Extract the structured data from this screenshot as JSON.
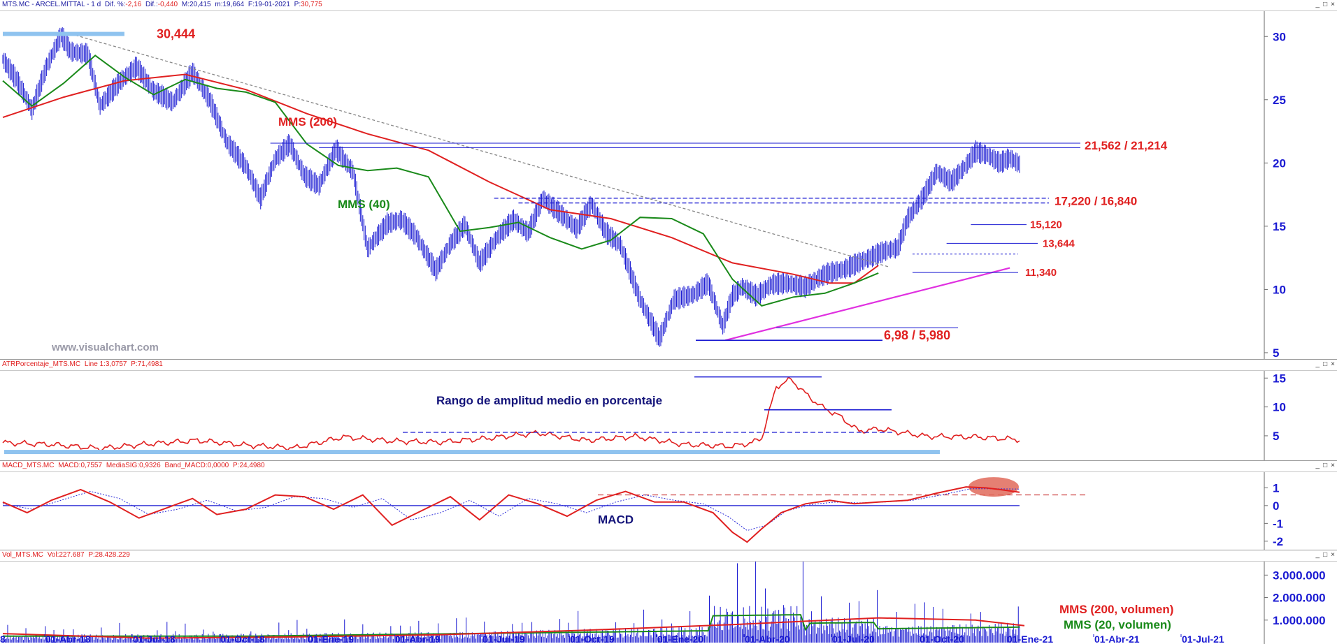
{
  "chart_data": [
    {
      "type": "line",
      "panel": "price",
      "header": {
        "symbol": "MTS.MC - ARCEL.MITTAL - 1 d",
        "change_pct_label": "Dif. %:",
        "change_pct": "-2,16",
        "change_label": "Dif.:",
        "change": "-0,440",
        "max_label": "M:",
        "max": "20,415",
        "min_label": "m:",
        "min": "19,664",
        "date_label": "F:",
        "date": "19-01-2021",
        "price_label": "P:",
        "price": "30,775"
      },
      "y_ticks": [
        "30",
        "25",
        "20",
        "15",
        "10",
        "5"
      ],
      "ylim": [
        4.5,
        32
      ],
      "x_ticks": [
        "01-Abr-18",
        "01-Jul-18",
        "01-Oct-18",
        "01-Ene-19",
        "01-Abr-19",
        "01-Jul-19",
        "01-Oct-19",
        "01-Ene-20",
        "01-Abr-20",
        "01-Jul-20",
        "01-Oct-20",
        "01-Ene-21",
        "01-Abr-21",
        "01-Jul-21"
      ],
      "first_tick_partial": "8",
      "series": [
        {
          "name": "MMS (40)",
          "color": "#1a8a1a",
          "x": [
            0,
            12,
            25,
            38,
            50,
            62,
            75,
            88,
            100,
            112,
            125,
            138,
            150,
            162,
            175,
            188,
            200,
            212,
            225,
            238,
            250,
            262,
            275,
            288,
            300,
            312,
            325,
            338,
            350,
            360
          ],
          "values": [
            26.5,
            24.5,
            26.3,
            28.5,
            26.8,
            25.4,
            26.6,
            25.9,
            25.6,
            24.8,
            21.5,
            19.8,
            19.4,
            19.6,
            18.9,
            14.6,
            14.9,
            15.3,
            14.1,
            13.2,
            13.9,
            15.7,
            15.6,
            14.4,
            10.8,
            8.7,
            9.4,
            9.7,
            10.5,
            11.3
          ]
        },
        {
          "name": "MMS (200)",
          "color": "#e02020",
          "x": [
            0,
            25,
            50,
            75,
            100,
            125,
            150,
            175,
            200,
            225,
            250,
            275,
            300,
            325,
            340,
            350,
            360
          ],
          "values": [
            23.6,
            25.2,
            26.5,
            27.0,
            25.8,
            23.9,
            22.3,
            21.0,
            18.5,
            16.3,
            15.6,
            14.1,
            12.1,
            11.2,
            10.5,
            10.5,
            11.9
          ]
        },
        {
          "name": "price",
          "color": "#1a1ad2",
          "x": [
            0,
            6,
            12,
            18,
            24,
            28,
            35,
            40,
            48,
            55,
            62,
            70,
            78,
            85,
            92,
            100,
            106,
            112,
            118,
            124,
            130,
            137,
            144,
            150,
            158,
            164,
            170,
            178,
            184,
            190,
            196,
            204,
            210,
            216,
            222,
            228,
            236,
            242,
            248,
            254,
            262,
            270,
            276,
            284,
            290,
            296,
            300,
            304,
            310,
            316,
            322,
            330,
            338,
            346,
            354,
            362,
            368,
            372,
            378,
            384,
            390,
            396,
            400,
            405,
            410,
            414,
            418
          ],
          "values": [
            28.2,
            26.5,
            24.2,
            27.6,
            30.1,
            28.8,
            28.6,
            24.5,
            26.4,
            27.6,
            25.7,
            24.8,
            27.2,
            25.0,
            21.7,
            19.7,
            17.2,
            20.3,
            21.5,
            19.0,
            18.2,
            21.1,
            19.3,
            13.2,
            15.2,
            15.5,
            14.2,
            11.5,
            13.6,
            15.1,
            12.1,
            14.3,
            15.5,
            14.5,
            17.2,
            16.2,
            14.8,
            16.8,
            14.5,
            13.5,
            9.2,
            6.1,
            9.2,
            9.6,
            10.5,
            7.1,
            9.5,
            10.2,
            9.5,
            10.4,
            10.5,
            10.2,
            11.2,
            11.6,
            12.3,
            13.0,
            13.3,
            15.6,
            17.2,
            19.3,
            18.5,
            19.8,
            20.9,
            20.6,
            20.0,
            20.4,
            19.9
          ]
        }
      ],
      "annotations": [
        {
          "text": "30,444",
          "color": "#e02020"
        },
        {
          "text": "MMS (200)",
          "color": "#e02020"
        },
        {
          "text": "MMS (40)",
          "color": "#1a8a1a"
        },
        {
          "text": "21,562 / 21,214",
          "color": "#e02020"
        },
        {
          "text": "17,220 / 16,840",
          "color": "#e02020"
        },
        {
          "text": "15,120",
          "color": "#e02020"
        },
        {
          "text": "13,644",
          "color": "#e02020"
        },
        {
          "text": "11,340",
          "color": "#e02020"
        },
        {
          "text": "6,98 / 5,980",
          "color": "#e02020"
        }
      ],
      "levels": [
        21.562,
        21.214,
        17.22,
        16.84,
        15.12,
        13.644,
        11.34,
        6.98,
        5.98
      ],
      "watermark": "www.visualchart.com"
    },
    {
      "type": "line",
      "panel": "atr",
      "header": {
        "name": "ATRPorcentaje_MTS.MC",
        "line_label": "Line 1:",
        "line_value": "3,0757",
        "p_label": "P:",
        "p_value": "71,4981"
      },
      "y_ticks": [
        "15",
        "10",
        "5"
      ],
      "ylim": [
        1,
        16
      ],
      "series": [
        {
          "name": "ATR %",
          "color": "#e02020",
          "x": [
            0,
            20,
            40,
            60,
            80,
            100,
            120,
            140,
            160,
            180,
            200,
            220,
            240,
            260,
            280,
            300,
            308,
            312,
            318,
            324,
            330,
            336,
            344,
            352,
            360,
            380,
            400,
            420
          ],
          "values": [
            3.8,
            3.5,
            2.8,
            3.6,
            4.2,
            3.4,
            2.9,
            4.8,
            4.1,
            3.9,
            4.6,
            5.5,
            4.2,
            4.9,
            3.5,
            3.2,
            3.8,
            4.6,
            13.5,
            14.8,
            12.3,
            10.2,
            8.4,
            5.8,
            6.2,
            4.9,
            4.8,
            4.3
          ]
        }
      ],
      "annotations": [
        {
          "text": "Rango de amplitud medio en porcentaje",
          "color": "#14147a"
        }
      ]
    },
    {
      "type": "line",
      "panel": "macd",
      "header": {
        "name": "MACD_MTS.MC",
        "macd_label": "MACD:",
        "macd": "0,7557",
        "sig_label": "MediaSIG:",
        "sig": "0,9326",
        "band_label": "Band_MACD:",
        "band": "0,0000",
        "p_label": "P:",
        "p_value": "24,4980"
      },
      "y_ticks": [
        "1",
        "0",
        "-1",
        "-2"
      ],
      "ylim": [
        -2.4,
        1.8
      ],
      "series": [
        {
          "name": "MACD",
          "color": "#e02020",
          "x": [
            0,
            10,
            20,
            32,
            44,
            56,
            68,
            78,
            88,
            100,
            112,
            124,
            136,
            148,
            160,
            172,
            184,
            196,
            208,
            220,
            232,
            244,
            256,
            268,
            280,
            292,
            300,
            306,
            312,
            320,
            330,
            340,
            350,
            360,
            372,
            384,
            396,
            404,
            410,
            418
          ],
          "values": [
            0.2,
            -0.4,
            0.3,
            0.9,
            0.2,
            -0.7,
            -0.1,
            0.4,
            -0.5,
            -0.2,
            0.6,
            0.5,
            -0.2,
            0.6,
            -1.1,
            -0.3,
            0.5,
            -0.8,
            0.6,
            0.1,
            -0.6,
            0.3,
            0.8,
            0.2,
            0.2,
            -0.4,
            -1.5,
            -2.05,
            -1.3,
            -0.4,
            0.1,
            0.3,
            0.1,
            0.2,
            0.3,
            0.7,
            1.05,
            1.0,
            0.9,
            0.75
          ]
        },
        {
          "name": "MediaSIG",
          "color": "#2a2ad8",
          "x": [
            0,
            12,
            24,
            36,
            48,
            60,
            72,
            84,
            96,
            108,
            120,
            132,
            144,
            156,
            168,
            180,
            192,
            204,
            216,
            228,
            240,
            252,
            264,
            276,
            288,
            298,
            306,
            314,
            322,
            332,
            342,
            352,
            362,
            374,
            386,
            398,
            406,
            418
          ],
          "values": [
            0.1,
            -0.2,
            0.3,
            0.8,
            0.4,
            -0.5,
            -0.2,
            0.3,
            -0.3,
            -0.1,
            0.5,
            0.4,
            -0.1,
            0.4,
            -0.8,
            -0.4,
            0.3,
            -0.6,
            0.4,
            0.1,
            -0.4,
            0.2,
            0.6,
            0.3,
            0.1,
            -0.6,
            -1.4,
            -1.1,
            -0.3,
            0.05,
            0.2,
            0.15,
            0.2,
            0.3,
            0.6,
            0.95,
            0.95,
            0.93
          ]
        }
      ],
      "annotations": [
        {
          "text": "MACD",
          "color": "#14147a"
        }
      ]
    },
    {
      "type": "bar",
      "panel": "volume",
      "header": {
        "name": "Vol_MTS.MC",
        "vol_label": "Vol:",
        "vol": "227.687",
        "p_label": "P:",
        "p_value": "28.428.229"
      },
      "y_ticks": [
        "3.000.000",
        "2.000.000",
        "1.000.000"
      ],
      "ylim": [
        0,
        3600000
      ],
      "series": [
        {
          "name": "MMS (200, volumen)",
          "color": "#e02020",
          "x": [
            0,
            60,
            120,
            180,
            240,
            300,
            360,
            400,
            420
          ],
          "values": [
            400000,
            200000,
            250000,
            350000,
            550000,
            800000,
            1100000,
            1000000,
            750000
          ]
        },
        {
          "name": "MMS (20, volumen)",
          "color": "#1a8a1a"
        }
      ],
      "annotations": [
        {
          "text": "MMS (200, volumen)",
          "color": "#e02020"
        },
        {
          "text": "MMS (20, volumen)",
          "color": "#1a8a1a"
        }
      ]
    }
  ],
  "window_buttons": [
    "_",
    "□",
    "×"
  ]
}
